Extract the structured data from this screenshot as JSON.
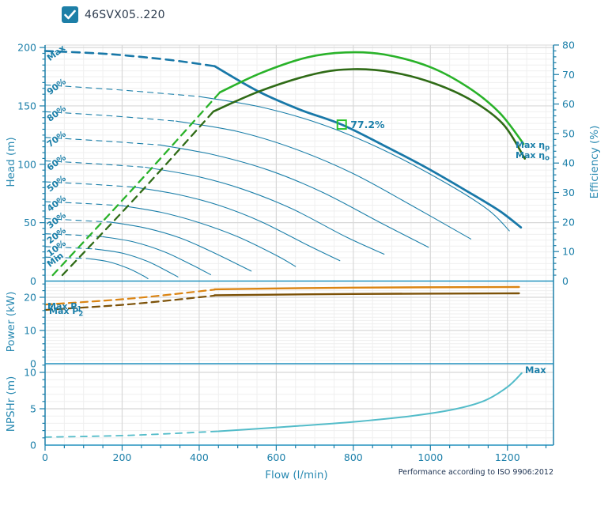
{
  "header": {
    "title": "46SVX05..220",
    "checkbox_checked": true
  },
  "footer": {
    "iso_note": "Performance according to ISO 9906:2012"
  },
  "colors": {
    "teal": "#1b7fa9",
    "tealBright": "#2191bd",
    "grey_major": "#d8d8d8",
    "grey_minor": "#efefef",
    "curveMain": "#1878a8",
    "green": "#29b229",
    "greenDark": "#2f6b16",
    "markerGreen": "#2bc32b",
    "orange": "#db8412",
    "brown": "#7d5208",
    "npsh": "#53bcc9",
    "title": "#2b3a4d",
    "note": "#1b3050",
    "checkbox": "#1d7fa7"
  },
  "axes": {
    "flow": {
      "label": "Flow (l/min)",
      "tick_labels": [
        0,
        200,
        400,
        600,
        800,
        1000,
        1200
      ],
      "minor_step": 50,
      "max": 1320
    },
    "head": {
      "label": "Head (m)",
      "tick_labels": [
        0,
        50,
        100,
        150,
        200
      ],
      "max": 200
    },
    "efficiency": {
      "label": "Efficiency (%)",
      "tick_labels": [
        0,
        10,
        20,
        30,
        40,
        50,
        60,
        70,
        80
      ],
      "max": 80
    },
    "power": {
      "label": "Power (kW)",
      "tick_labels": [
        0,
        10,
        20
      ],
      "max": 24.8
    },
    "npsh": {
      "label": "NPSHr (m)",
      "tick_labels": [
        0,
        5,
        10
      ],
      "max": 11.2
    }
  },
  "chart_data": {
    "type": "line",
    "xlabel": "Flow (l/min)",
    "duty_point": {
      "flow": 770,
      "head": 134,
      "efficiency_label": "77.2%"
    },
    "annotations": {
      "max_eta_p": {
        "base": "Max  η",
        "sub": "p"
      },
      "max_eta_o": {
        "base": "Max  η",
        "sub": "o"
      },
      "max_p1": {
        "base": "Max P",
        "sub": "1"
      },
      "max_p2": {
        "base": "Max P",
        "sub": "2"
      },
      "npsh_max": "Max"
    },
    "speed_labels": [
      {
        "label": "Max",
        "head": 197
      },
      {
        "label": "90%",
        "head": 168
      },
      {
        "label": "80%",
        "head": 145
      },
      {
        "label": "70%",
        "head": 123
      },
      {
        "label": "60%",
        "head": 103
      },
      {
        "label": "50%",
        "head": 85
      },
      {
        "label": "40%",
        "head": 68
      },
      {
        "label": "30%",
        "head": 53.5
      },
      {
        "label": "20%",
        "head": 40.5
      },
      {
        "label": "10%",
        "head": 29.5
      },
      {
        "label": "Min",
        "head": 20.5
      }
    ],
    "series": [
      {
        "name": "head-90pct-dashed",
        "axis": "head",
        "color": "teal",
        "width": 1.1,
        "dash": "7 6",
        "points": [
          [
            0,
            168
          ],
          [
            200,
            163.5
          ],
          [
            400,
            158
          ]
        ]
      },
      {
        "name": "head-90pct",
        "axis": "head",
        "color": "teal",
        "width": 1.1,
        "points": [
          [
            400,
            158
          ],
          [
            560,
            149
          ],
          [
            720,
            134
          ],
          [
            880,
            112
          ],
          [
            1040,
            84
          ],
          [
            1150,
            61
          ],
          [
            1205,
            43
          ]
        ]
      },
      {
        "name": "head-80pct-dashed",
        "axis": "head",
        "color": "teal",
        "width": 1.1,
        "dash": "7 6",
        "points": [
          [
            0,
            145
          ],
          [
            170,
            141.5
          ],
          [
            340,
            137
          ]
        ]
      },
      {
        "name": "head-80pct",
        "axis": "head",
        "color": "teal",
        "width": 1.1,
        "points": [
          [
            340,
            137
          ],
          [
            500,
            128
          ],
          [
            650,
            113
          ],
          [
            800,
            92
          ],
          [
            950,
            65
          ],
          [
            1105,
            36
          ]
        ]
      },
      {
        "name": "head-70pct-dashed",
        "axis": "head",
        "color": "teal",
        "width": 1.1,
        "dash": "7 6",
        "points": [
          [
            0,
            123
          ],
          [
            150,
            120
          ],
          [
            300,
            116.5
          ]
        ]
      },
      {
        "name": "head-70pct",
        "axis": "head",
        "color": "teal",
        "width": 1.1,
        "points": [
          [
            300,
            116.5
          ],
          [
            440,
            108
          ],
          [
            580,
            95
          ],
          [
            720,
            76
          ],
          [
            870,
            50
          ],
          [
            995,
            29
          ]
        ]
      },
      {
        "name": "head-60pct-dashed",
        "axis": "head",
        "color": "teal",
        "width": 1.1,
        "dash": "7 6",
        "points": [
          [
            0,
            103
          ],
          [
            130,
            100.5
          ],
          [
            260,
            97.5
          ]
        ]
      },
      {
        "name": "head-60pct",
        "axis": "head",
        "color": "teal",
        "width": 1.1,
        "points": [
          [
            260,
            97.5
          ],
          [
            390,
            90
          ],
          [
            510,
            79
          ],
          [
            640,
            62
          ],
          [
            780,
            38
          ],
          [
            880,
            23
          ]
        ]
      },
      {
        "name": "head-50pct-dashed",
        "axis": "head",
        "color": "teal",
        "width": 1.1,
        "dash": "7 6",
        "points": [
          [
            0,
            85
          ],
          [
            115,
            83
          ],
          [
            230,
            80.5
          ]
        ]
      },
      {
        "name": "head-50pct",
        "axis": "head",
        "color": "teal",
        "width": 1.1,
        "points": [
          [
            230,
            80.5
          ],
          [
            340,
            74.5
          ],
          [
            450,
            65
          ],
          [
            560,
            51
          ],
          [
            680,
            31
          ],
          [
            765,
            17.5
          ]
        ]
      },
      {
        "name": "head-40pct-dashed",
        "axis": "head",
        "color": "teal",
        "width": 1.1,
        "dash": "7 6",
        "points": [
          [
            0,
            68
          ],
          [
            100,
            66.5
          ],
          [
            200,
            64.5
          ]
        ]
      },
      {
        "name": "head-40pct",
        "axis": "head",
        "color": "teal",
        "width": 1.1,
        "points": [
          [
            200,
            64.5
          ],
          [
            300,
            59
          ],
          [
            400,
            50
          ],
          [
            500,
            38
          ],
          [
            600,
            22
          ],
          [
            650,
            12.5
          ]
        ]
      },
      {
        "name": "head-30pct-dashed",
        "axis": "head",
        "color": "teal",
        "width": 1.1,
        "dash": "7 6",
        "points": [
          [
            0,
            53.5
          ],
          [
            85,
            52
          ],
          [
            170,
            50.5
          ]
        ]
      },
      {
        "name": "head-30pct",
        "axis": "head",
        "color": "teal",
        "width": 1.1,
        "points": [
          [
            170,
            50.5
          ],
          [
            260,
            45.5
          ],
          [
            350,
            37
          ],
          [
            440,
            24
          ],
          [
            535,
            8.5
          ]
        ]
      },
      {
        "name": "head-20pct-dashed",
        "axis": "head",
        "color": "teal",
        "width": 1.1,
        "dash": "7 6",
        "points": [
          [
            0,
            40.5
          ],
          [
            75,
            39.5
          ],
          [
            150,
            38
          ]
        ]
      },
      {
        "name": "head-20pct",
        "axis": "head",
        "color": "teal",
        "width": 1.1,
        "points": [
          [
            150,
            38
          ],
          [
            230,
            33.5
          ],
          [
            310,
            25
          ],
          [
            380,
            14
          ],
          [
            430,
            5.5
          ]
        ]
      },
      {
        "name": "head-10pct-dashed",
        "axis": "head",
        "color": "teal",
        "width": 1.1,
        "dash": "7 6",
        "points": [
          [
            0,
            29.5
          ],
          [
            65,
            28.5
          ],
          [
            130,
            27.5
          ]
        ]
      },
      {
        "name": "head-10pct",
        "axis": "head",
        "color": "teal",
        "width": 1.1,
        "points": [
          [
            130,
            27.5
          ],
          [
            200,
            24
          ],
          [
            265,
            17
          ],
          [
            320,
            8
          ],
          [
            345,
            3.5
          ]
        ]
      },
      {
        "name": "head-min-dashed",
        "axis": "head",
        "color": "teal",
        "width": 1.1,
        "dash": "7 6",
        "points": [
          [
            0,
            20.5
          ],
          [
            55,
            20
          ],
          [
            110,
            19.3
          ]
        ]
      },
      {
        "name": "head-min",
        "axis": "head",
        "color": "teal",
        "width": 1.1,
        "points": [
          [
            110,
            19.3
          ],
          [
            165,
            16.5
          ],
          [
            215,
            11
          ],
          [
            255,
            4.5
          ],
          [
            267,
            2
          ]
        ]
      },
      {
        "name": "head-max-dashed",
        "axis": "head",
        "color": "curveMain",
        "width": 2.6,
        "dash": "10 7",
        "points": [
          [
            0,
            197
          ],
          [
            160,
            194.5
          ],
          [
            320,
            189.5
          ],
          [
            440,
            184
          ]
        ]
      },
      {
        "name": "head-max",
        "axis": "head",
        "color": "curveMain",
        "width": 2.8,
        "points": [
          [
            440,
            184
          ],
          [
            550,
            163
          ],
          [
            660,
            147
          ],
          [
            770,
            134
          ],
          [
            880,
            116
          ],
          [
            990,
            97
          ],
          [
            1100,
            76
          ],
          [
            1180,
            60
          ],
          [
            1235,
            46
          ]
        ]
      },
      {
        "name": "efficiency-pump-dashed",
        "axis": "efficiency",
        "color": "green",
        "width": 2.3,
        "dash": "9 7",
        "points": [
          [
            20,
            2
          ],
          [
            240,
            33
          ],
          [
            454,
            64
          ]
        ]
      },
      {
        "name": "efficiency-pump",
        "axis": "efficiency",
        "color": "green",
        "width": 2.6,
        "points": [
          [
            454,
            64
          ],
          [
            560,
            70.5
          ],
          [
            680,
            75.8
          ],
          [
            780,
            77.5
          ],
          [
            880,
            76.8
          ],
          [
            1000,
            72.5
          ],
          [
            1100,
            65.5
          ],
          [
            1180,
            57
          ],
          [
            1242,
            46.5
          ]
        ]
      },
      {
        "name": "efficiency-overall-dashed",
        "axis": "efficiency",
        "color": "greenDark",
        "width": 2.3,
        "dash": "9 7",
        "points": [
          [
            45,
            2
          ],
          [
            240,
            29
          ],
          [
            437,
            57.5
          ]
        ]
      },
      {
        "name": "efficiency-overall",
        "axis": "efficiency",
        "color": "greenDark",
        "width": 2.6,
        "points": [
          [
            437,
            57.5
          ],
          [
            560,
            64.5
          ],
          [
            700,
            70.2
          ],
          [
            800,
            71.8
          ],
          [
            900,
            70.8
          ],
          [
            1010,
            67
          ],
          [
            1110,
            61
          ],
          [
            1190,
            53
          ],
          [
            1245,
            41.5
          ]
        ]
      },
      {
        "name": "power-p1-dashed",
        "axis": "power",
        "color": "orange",
        "width": 2.2,
        "dash": "9 6",
        "points": [
          [
            0,
            17.8
          ],
          [
            220,
            19.6
          ],
          [
            440,
            22.3
          ]
        ]
      },
      {
        "name": "power-p1",
        "axis": "power",
        "color": "orange",
        "width": 2.4,
        "points": [
          [
            440,
            22.4
          ],
          [
            800,
            22.9
          ],
          [
            1230,
            23.1
          ]
        ]
      },
      {
        "name": "power-p2-dashed",
        "axis": "power",
        "color": "brown",
        "width": 2.2,
        "dash": "9 6",
        "points": [
          [
            0,
            16.2
          ],
          [
            220,
            17.9
          ],
          [
            440,
            20.5
          ]
        ]
      },
      {
        "name": "power-p2",
        "axis": "power",
        "color": "brown",
        "width": 2.4,
        "points": [
          [
            440,
            20.6
          ],
          [
            800,
            21.0
          ],
          [
            1230,
            21.2
          ]
        ]
      },
      {
        "name": "npsh-dashed",
        "axis": "npsh",
        "color": "npsh",
        "width": 1.8,
        "dash": "8 7",
        "points": [
          [
            0,
            1.1
          ],
          [
            220,
            1.35
          ],
          [
            450,
            1.9
          ]
        ]
      },
      {
        "name": "npsh",
        "axis": "npsh",
        "color": "npsh",
        "width": 2.0,
        "points": [
          [
            450,
            1.9
          ],
          [
            620,
            2.5
          ],
          [
            800,
            3.2
          ],
          [
            950,
            4.0
          ],
          [
            1060,
            4.9
          ],
          [
            1140,
            6.1
          ],
          [
            1200,
            8.0
          ],
          [
            1237,
            9.9
          ]
        ]
      }
    ]
  }
}
